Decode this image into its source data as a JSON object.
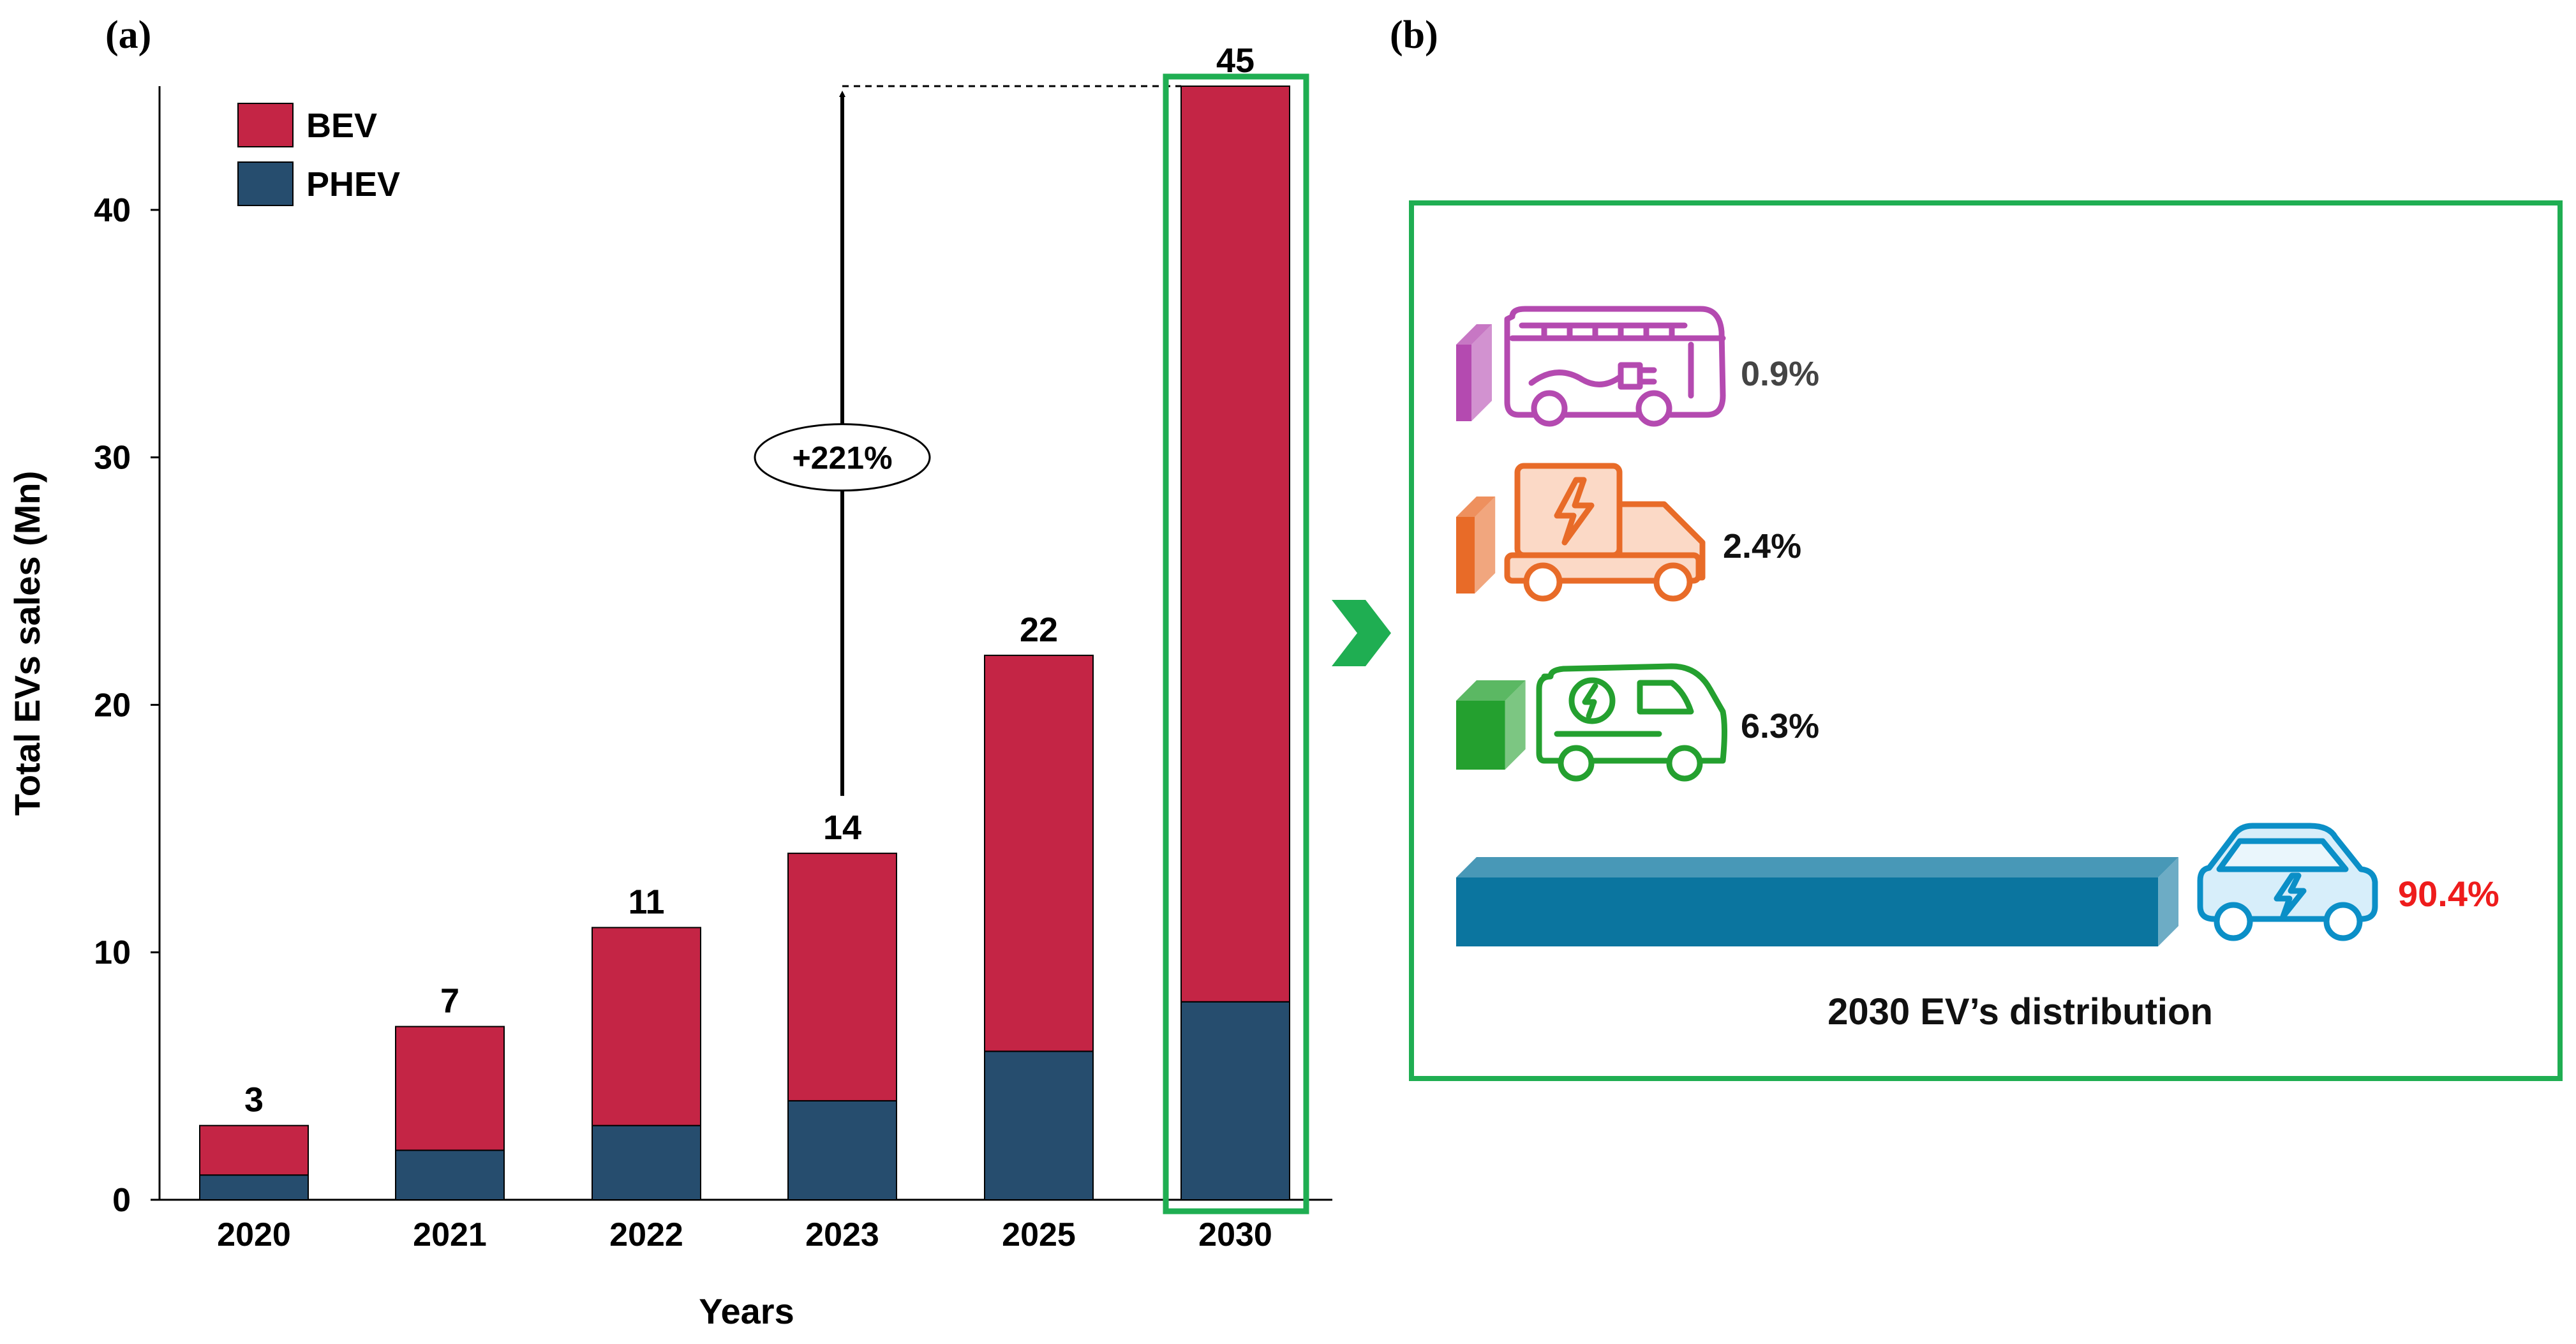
{
  "panel_a": {
    "label": "(a)"
  },
  "panel_b": {
    "label": "(b)"
  },
  "colors": {
    "bev": "#c42545",
    "phev": "#264d6e",
    "highlight": "#1fae52",
    "bus": "#b44ab0",
    "truck": "#e86b28",
    "van": "#24a02f",
    "car": "#0b8fc7",
    "car_bar": "#0b759f",
    "red_text": "#ee1c1c"
  },
  "chart_data": [
    {
      "type": "bar",
      "stacked": true,
      "title": "",
      "xlabel": "Years",
      "ylabel": "Total EVs sales (Mn)",
      "ylim": [
        0,
        45
      ],
      "yticks": [
        0,
        10,
        20,
        30,
        40
      ],
      "categories": [
        "2020",
        "2021",
        "2022",
        "2023",
        "2025",
        "2030"
      ],
      "series": [
        {
          "name": "PHEV",
          "values": [
            1,
            2,
            3,
            4,
            6,
            8
          ]
        },
        {
          "name": "BEV",
          "values": [
            2,
            5,
            8,
            10,
            16,
            37
          ]
        }
      ],
      "totals": [
        3,
        7,
        11,
        14,
        22,
        45
      ],
      "total_labels": [
        "3",
        "7",
        "11",
        "14",
        "22",
        "45"
      ],
      "legend": {
        "position": "top-left",
        "entries": [
          "BEV",
          "PHEV"
        ]
      },
      "highlighted_category": "2030",
      "annotation": {
        "text": "+221%",
        "from_category": "2023",
        "to_category": "2030"
      }
    },
    {
      "type": "bar",
      "title": "2030 EV’s distribution",
      "categories": [
        "Bus",
        "Truck",
        "Van",
        "Car"
      ],
      "icons": [
        "electric-bus-icon",
        "electric-truck-icon",
        "electric-van-icon",
        "electric-car-icon"
      ],
      "values": [
        0.9,
        2.4,
        6.3,
        90.4
      ],
      "value_labels": [
        "0.9%",
        "2.4%",
        "6.3%",
        "90.4%"
      ]
    }
  ],
  "ui": {
    "next_arrow_icon": "chevron-right-icon"
  }
}
